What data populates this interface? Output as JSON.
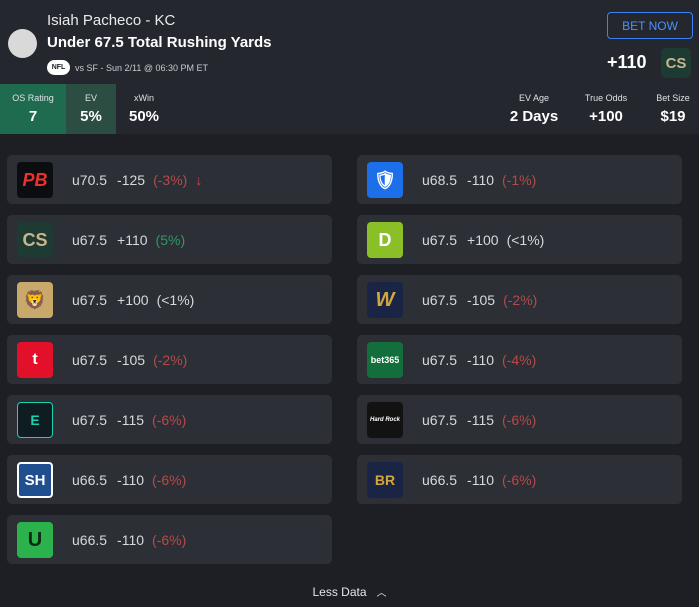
{
  "header": {
    "player": "Isiah Pacheco - KC",
    "prop": "Under 67.5 Total Rushing Yards",
    "league_badge": "NFL",
    "game_info": "vs SF - Sun 2/11 @ 06:30 PM ET",
    "bet_now_label": "BET NOW",
    "odds": "+110",
    "book_logo_text": "CS"
  },
  "stats": {
    "os_rating": {
      "label": "OS Rating",
      "value": "7"
    },
    "ev": {
      "label": "EV",
      "value": "5%"
    },
    "xwin": {
      "label": "xWin",
      "value": "50%"
    },
    "ev_age": {
      "label": "EV Age",
      "value": "2 Days"
    },
    "true_odds": {
      "label": "True Odds",
      "value": "+100"
    },
    "bet_size": {
      "label": "Bet Size",
      "value": "$19"
    }
  },
  "books_left": [
    {
      "logo": "PB",
      "logo_icon": "pointsbet-logo",
      "line": "u70.5",
      "odds": "-125",
      "ev": "(-3%)",
      "ev_tone": "neg",
      "arrow": "↓"
    },
    {
      "logo": "CS",
      "logo_icon": "caesars-logo",
      "line": "u67.5",
      "odds": "+110",
      "ev": "(5%)",
      "ev_tone": "pos"
    },
    {
      "logo": "🦁",
      "logo_icon": "betmgm-logo",
      "line": "u67.5",
      "odds": "+100",
      "ev": "(<1%)",
      "ev_tone": "neu"
    },
    {
      "logo": "t",
      "logo_icon": "tipico-logo",
      "line": "u67.5",
      "odds": "-105",
      "ev": "(-2%)",
      "ev_tone": "neg"
    },
    {
      "logo": "E",
      "logo_icon": "espnbet-logo",
      "line": "u67.5",
      "odds": "-115",
      "ev": "(-6%)",
      "ev_tone": "neg"
    },
    {
      "logo": "SH",
      "logo_icon": "superbook-logo",
      "line": "u66.5",
      "odds": "-110",
      "ev": "(-6%)",
      "ev_tone": "neg"
    },
    {
      "logo": "U",
      "logo_icon": "unibet-logo",
      "line": "u66.5",
      "odds": "-110",
      "ev": "(-6%)",
      "ev_tone": "neg"
    }
  ],
  "books_right": [
    {
      "logo": "🛡",
      "logo_icon": "fanduel-logo",
      "line": "u68.5",
      "odds": "-110",
      "ev": "(-1%)",
      "ev_tone": "neg"
    },
    {
      "logo": "D",
      "logo_icon": "draftkings-logo",
      "line": "u67.5",
      "odds": "+100",
      "ev": "(<1%)",
      "ev_tone": "neu"
    },
    {
      "logo": "W",
      "logo_icon": "wynnbet-logo",
      "line": "u67.5",
      "odds": "-105",
      "ev": "(-2%)",
      "ev_tone": "neg"
    },
    {
      "logo": "bet365",
      "logo_icon": "bet365-logo",
      "line": "u67.5",
      "odds": "-110",
      "ev": "(-4%)",
      "ev_tone": "neg"
    },
    {
      "logo": "Hard Rock",
      "logo_icon": "hardrock-logo",
      "line": "u67.5",
      "odds": "-115",
      "ev": "(-6%)",
      "ev_tone": "neg"
    },
    {
      "logo": "BR",
      "logo_icon": "betrivers-logo",
      "line": "u66.5",
      "odds": "-110",
      "ev": "(-6%)",
      "ev_tone": "neg"
    }
  ],
  "footer": {
    "label": "Less Data",
    "chevron_icon": "chevron-up-icon"
  },
  "colors": {
    "accent": "#3b82f6",
    "positive": "#2f9a62",
    "negative": "#b54a4a",
    "os_bg": "#1f6b50"
  }
}
